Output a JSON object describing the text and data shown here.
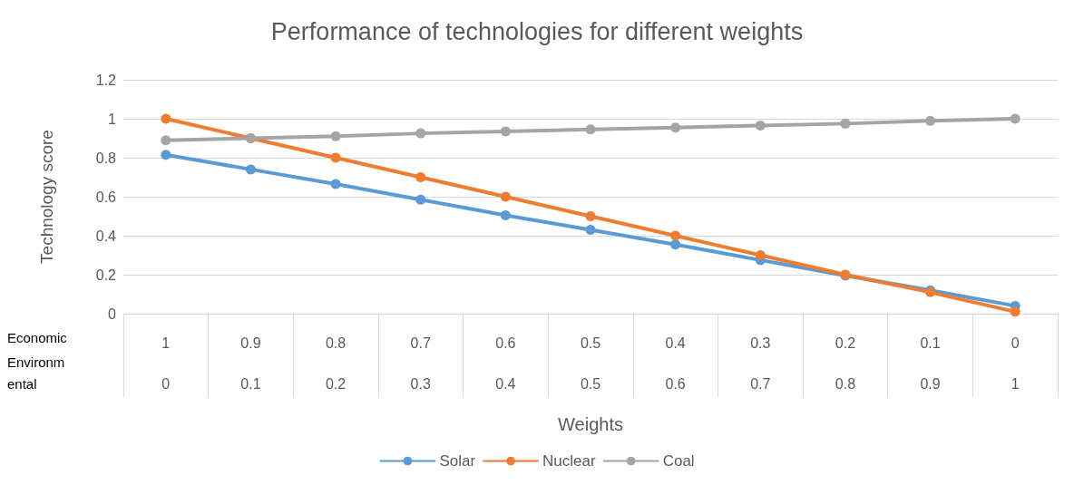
{
  "chart_data": {
    "type": "line",
    "title": "Performance of technologies for different weights",
    "xlabel": "Weights",
    "ylabel": "Technology score",
    "categories": [
      "1",
      "0.9",
      "0.8",
      "0.7",
      "0.6",
      "0.5",
      "0.4",
      "0.3",
      "0.2",
      "0.1",
      "0"
    ],
    "series": [
      {
        "name": "Solar",
        "color": "#5b9bd5",
        "values": [
          0.815,
          0.74,
          0.665,
          0.585,
          0.505,
          0.43,
          0.355,
          0.275,
          0.195,
          0.12,
          0.04
        ]
      },
      {
        "name": "Nuclear",
        "color": "#ed7d31",
        "values": [
          1,
          0.9,
          0.8,
          0.7,
          0.6,
          0.5,
          0.4,
          0.3,
          0.2,
          0.11,
          0.01
        ]
      },
      {
        "name": "Coal",
        "color": "#a5a5a5",
        "values": [
          0.89,
          0.9,
          0.91,
          0.925,
          0.935,
          0.945,
          0.955,
          0.965,
          0.975,
          0.99,
          1
        ]
      }
    ],
    "annotations": [
      "Economic",
      "Environmental",
      "0",
      "0.1",
      "0.2",
      "0.3",
      "0.4",
      "0.5",
      "0.6",
      "0.7",
      "0.8",
      "0.9",
      "1"
    ],
    "ylim": [
      0,
      1.2
    ],
    "yticks": [
      0,
      0.2,
      0.4,
      0.6,
      0.8,
      1,
      1.2
    ],
    "grid": "y",
    "legend": "bottom",
    "marker": "circle",
    "line_style": "solid"
  }
}
